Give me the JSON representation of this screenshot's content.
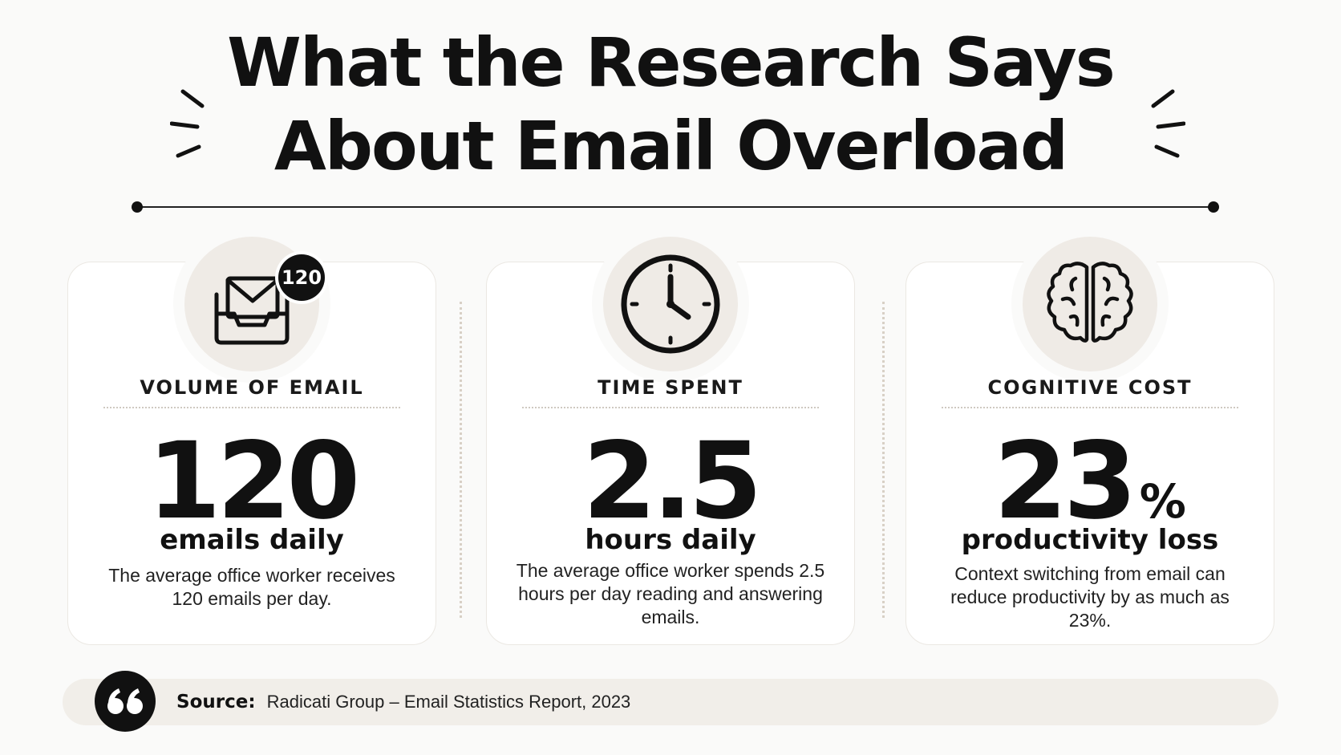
{
  "title": {
    "line1": "What the Research Says",
    "line2": "About Email Overload"
  },
  "cards": [
    {
      "icon": "inbox-envelope-icon",
      "badge": "120",
      "label": "VOLUME OF EMAIL",
      "value": "120",
      "unit": "emails daily",
      "description": "The average office worker receives 120 emails per day."
    },
    {
      "icon": "clock-icon",
      "label": "TIME SPENT",
      "value": "2.5",
      "unit": "hours daily",
      "description": "The average office worker spends 2.5 hours per day reading and answering emails."
    },
    {
      "icon": "brain-icon",
      "label": "COGNITIVE COST",
      "value": "23",
      "value_suffix": "%",
      "unit": "productivity loss",
      "description": "Context switching from email can reduce productivity by as much as 23%."
    }
  ],
  "source": {
    "icon": "quote-icon",
    "label": "Source:",
    "text": "Radicati Group – Email Statistics Report, 2023"
  },
  "colors": {
    "background": "#fafaf9",
    "text": "#111111",
    "icon_disc": "#efebe6",
    "source_bar": "#f1eee9"
  }
}
